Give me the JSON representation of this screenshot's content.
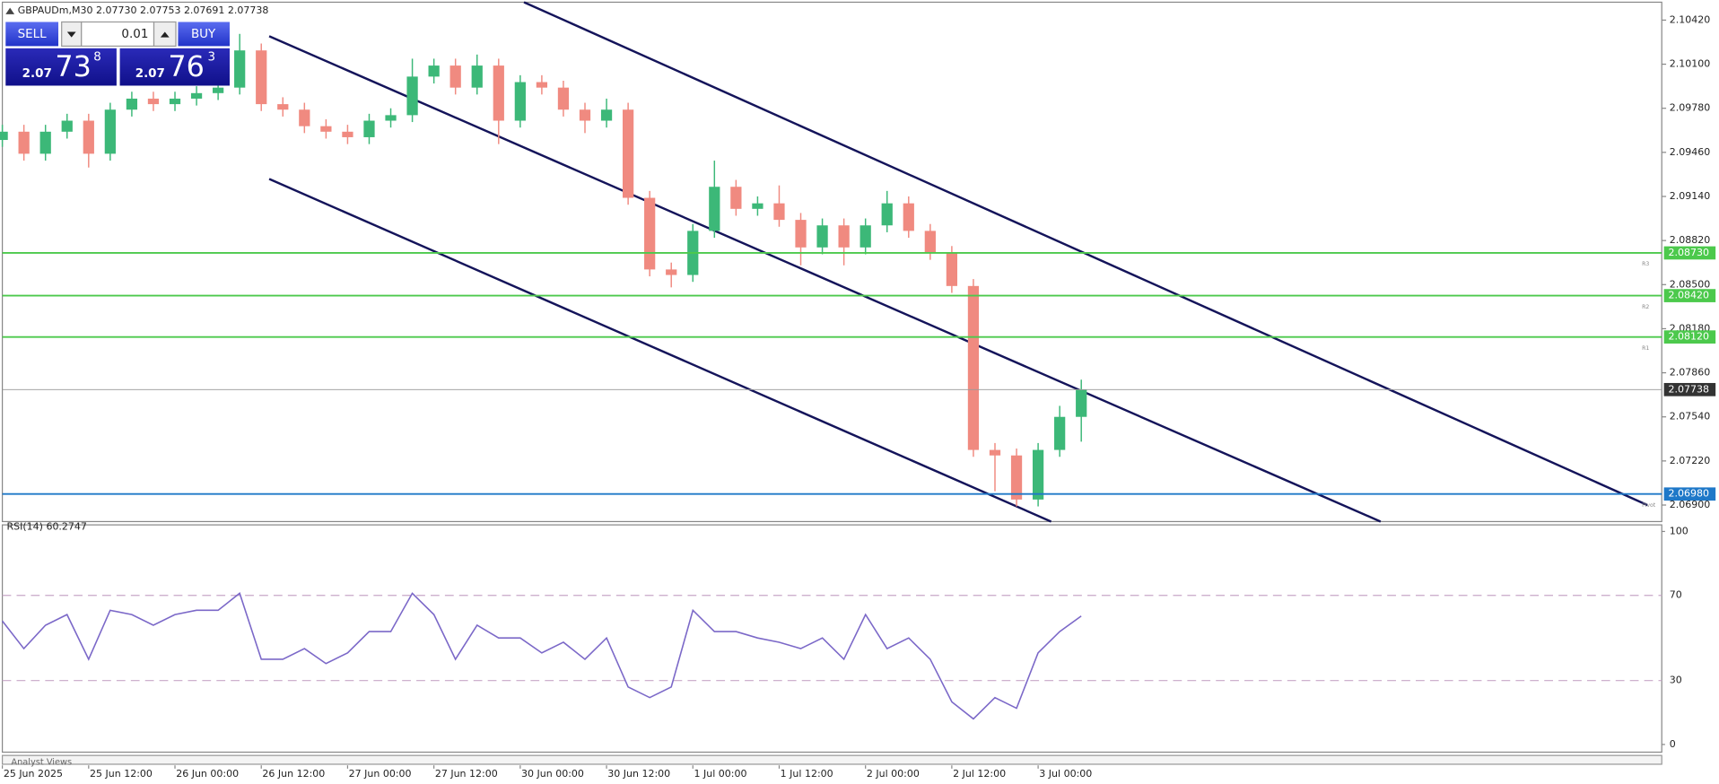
{
  "header": {
    "symbol_line": "GBPAUDm,M30  2.07730 2.07753 2.07691 2.07738"
  },
  "trade_panel": {
    "sell": "SELL",
    "lot": "0.01",
    "buy": "BUY",
    "bid": {
      "big": "2.07",
      "main": "73",
      "small": "8"
    },
    "ask": {
      "big": "2.07",
      "main": "76",
      "small": "3"
    }
  },
  "footer": {
    "tab": "Analyst Views"
  },
  "chart_data": [
    {
      "type": "candlestick",
      "x": [
        0,
        3,
        6,
        9,
        12,
        15,
        18,
        21,
        24,
        27,
        30,
        33,
        36,
        39,
        42,
        45,
        48,
        51,
        54,
        57,
        60,
        63,
        66,
        69,
        72,
        75,
        78,
        81,
        84,
        87,
        90,
        93,
        96,
        99,
        102,
        105,
        108,
        111,
        114,
        117,
        120,
        123,
        126,
        129,
        132,
        135,
        138,
        141,
        144,
        147,
        150
      ],
      "open": [
        2.0955,
        2.0961,
        2.0945,
        2.0961,
        2.0969,
        2.0945,
        2.0977,
        2.0985,
        2.0981,
        2.0985,
        2.0989,
        2.0993,
        2.102,
        2.0981,
        2.0977,
        2.0965,
        2.0961,
        2.0957,
        2.0969,
        2.0973,
        2.1001,
        2.1009,
        2.0993,
        2.1009,
        2.0969,
        2.0997,
        2.0993,
        2.0977,
        2.0969,
        2.0977,
        2.0913,
        2.0861,
        2.0857,
        2.0889,
        2.0921,
        2.0905,
        2.0909,
        2.0897,
        2.0877,
        2.0893,
        2.0877,
        2.0893,
        2.0909,
        2.0889,
        2.0873,
        2.0849,
        2.073,
        2.0726,
        2.0694,
        2.073,
        2.0754
      ],
      "high": [
        2.0966,
        2.0966,
        2.0966,
        2.0974,
        2.0974,
        2.0982,
        2.099,
        2.099,
        2.099,
        2.0994,
        2.0998,
        2.1032,
        2.1025,
        2.0986,
        2.0982,
        2.097,
        2.0966,
        2.0974,
        2.0978,
        2.1014,
        2.1014,
        2.1014,
        2.1017,
        2.1014,
        2.1002,
        2.1002,
        2.0998,
        2.0982,
        2.0985,
        2.0982,
        2.0918,
        2.0866,
        2.0894,
        2.094,
        2.0926,
        2.0914,
        2.0922,
        2.0902,
        2.0898,
        2.0898,
        2.0898,
        2.0918,
        2.0914,
        2.0894,
        2.0878,
        2.0854,
        2.0735,
        2.0731,
        2.0735,
        2.0762,
        2.0781
      ],
      "low": [
        2.095,
        2.094,
        2.094,
        2.0956,
        2.0935,
        2.094,
        2.0972,
        2.0976,
        2.0976,
        2.098,
        2.0984,
        2.0988,
        2.0976,
        2.0972,
        2.096,
        2.0956,
        2.0952,
        2.0952,
        2.0964,
        2.0968,
        2.0996,
        2.0988,
        2.0988,
        2.0952,
        2.0964,
        2.0988,
        2.0972,
        2.096,
        2.0964,
        2.0908,
        2.0856,
        2.0848,
        2.0852,
        2.0884,
        2.09,
        2.09,
        2.0892,
        2.0864,
        2.0872,
        2.0864,
        2.0872,
        2.0888,
        2.0884,
        2.0868,
        2.0844,
        2.0725,
        2.07,
        2.0689,
        2.0689,
        2.0725,
        2.0736
      ],
      "close": [
        2.0961,
        2.0945,
        2.0961,
        2.0969,
        2.0945,
        2.0977,
        2.0985,
        2.0981,
        2.0985,
        2.0989,
        2.0993,
        2.102,
        2.0981,
        2.0977,
        2.0965,
        2.0961,
        2.0957,
        2.0969,
        2.0973,
        2.1001,
        2.1009,
        2.0993,
        2.1009,
        2.0969,
        2.0997,
        2.0993,
        2.0977,
        2.0969,
        2.0977,
        2.0913,
        2.0861,
        2.0857,
        2.0889,
        2.0921,
        2.0905,
        2.0909,
        2.0897,
        2.0877,
        2.0893,
        2.0877,
        2.0893,
        2.0909,
        2.0889,
        2.0873,
        2.0849,
        2.073,
        2.0726,
        2.0694,
        2.073,
        2.0754,
        2.0774
      ],
      "up_color": "#3cb878",
      "down_color": "#f08a80",
      "xlim": [
        0,
        230.7
      ],
      "xticks": [
        {
          "value": 0,
          "label": "25 Jun 2025"
        },
        {
          "value": 12,
          "label": "25 Jun 12:00"
        },
        {
          "value": 24,
          "label": "26 Jun 00:00"
        },
        {
          "value": 36,
          "label": "26 Jun 12:00"
        },
        {
          "value": 48,
          "label": "27 Jun 00:00"
        },
        {
          "value": 60,
          "label": "27 Jun 12:00"
        },
        {
          "value": 72,
          "label": "30 Jun 00:00"
        },
        {
          "value": 84,
          "label": "30 Jun 12:00"
        },
        {
          "value": 96,
          "label": "1 Jul 00:00"
        },
        {
          "value": 108,
          "label": "1 Jul 12:00"
        },
        {
          "value": 120,
          "label": "2 Jul 00:00"
        },
        {
          "value": 132,
          "label": "2 Jul 12:00"
        },
        {
          "value": 144,
          "label": "3 Jul 00:00"
        }
      ],
      "ylim": [
        2.0678,
        2.1055
      ],
      "yticks": [
        {
          "value": 2.1042,
          "label": "2.10420"
        },
        {
          "value": 2.101,
          "label": "2.10100"
        },
        {
          "value": 2.0978,
          "label": "2.09780"
        },
        {
          "value": 2.0946,
          "label": "2.09460"
        },
        {
          "value": 2.0914,
          "label": "2.09140"
        },
        {
          "value": 2.0882,
          "label": "2.08820"
        },
        {
          "value": 2.085,
          "label": "2.08500"
        },
        {
          "value": 2.0818,
          "label": "2.08180"
        },
        {
          "value": 2.0786,
          "label": "2.07860"
        },
        {
          "value": 2.0754,
          "label": "2.07540"
        },
        {
          "value": 2.0722,
          "label": "2.07220"
        },
        {
          "value": 2.069,
          "label": "2.06900"
        }
      ],
      "levels": [
        {
          "name": "R3",
          "value": 2.0873,
          "label": "2.08730",
          "color": "#4cc94c"
        },
        {
          "name": "R2",
          "value": 2.0842,
          "label": "2.08420",
          "color": "#4cc94c"
        },
        {
          "name": "R1",
          "value": 2.0812,
          "label": "2.08120",
          "color": "#4cc94c"
        },
        {
          "name": "Pivot",
          "value": 2.0698,
          "label": "2.06980",
          "color": "#1e78c8"
        }
      ],
      "current_price": {
        "value": 2.07738,
        "label": "2.07738",
        "color": "#333333"
      }
    },
    {
      "type": "line",
      "title": "RSI(14) 60.2747",
      "x": [
        0,
        3,
        6,
        9,
        12,
        15,
        18,
        21,
        24,
        27,
        30,
        33,
        36,
        39,
        42,
        45,
        48,
        51,
        54,
        57,
        60,
        63,
        66,
        69,
        72,
        75,
        78,
        81,
        84,
        87,
        90,
        93,
        96,
        99,
        102,
        105,
        108,
        111,
        114,
        117,
        120,
        123,
        126,
        129,
        132,
        135,
        138,
        141,
        144,
        147,
        150
      ],
      "series": [
        {
          "color": "#7b68c8",
          "values": [
            58,
            45,
            56,
            61,
            40,
            63,
            61,
            56,
            61,
            63,
            63,
            71,
            40,
            40,
            45,
            38,
            43,
            53,
            53,
            71,
            61,
            40,
            56,
            50,
            50,
            43,
            48,
            40,
            50,
            27,
            22,
            27,
            63,
            53,
            53,
            50,
            48,
            45,
            50,
            40,
            61,
            45,
            50,
            40,
            20,
            12,
            22,
            17,
            43,
            53,
            60.3
          ]
        }
      ],
      "ylim": [
        0,
        100
      ],
      "yticks": [
        100,
        70,
        30,
        0
      ],
      "dashed_color": "#c8a8c8"
    }
  ]
}
